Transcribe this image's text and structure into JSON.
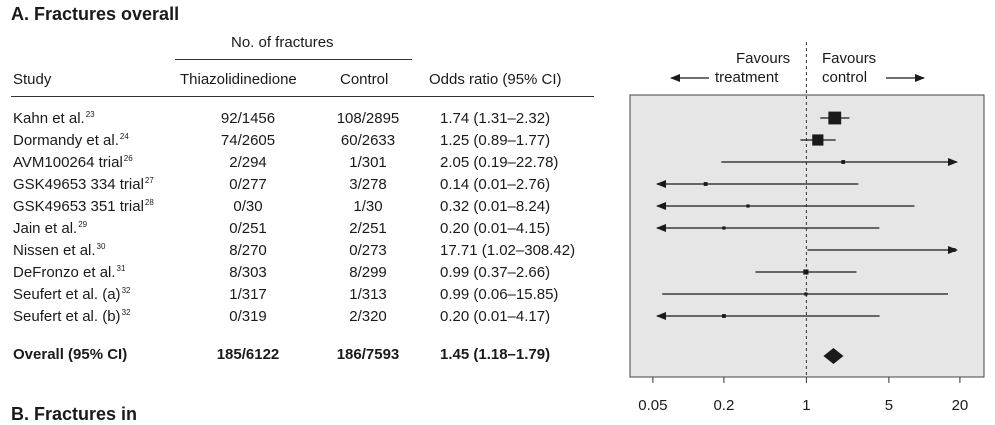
{
  "section_title": "A. Fractures overall",
  "next_section_title": "B. Fractures in",
  "columns": {
    "group_header": "No. of fractures",
    "study": "Study",
    "treatment": "Thiazolidinedione",
    "control": "Control",
    "or": "Odds ratio (95% CI)"
  },
  "favours": {
    "left_line1": "Favours",
    "left_line2": "treatment",
    "right_line1": "Favours",
    "right_line2": "control"
  },
  "rows": [
    {
      "study": "Kahn et al.",
      "ref": "23",
      "treatment": "92/1456",
      "control": "108/2895",
      "or_text": "1.74 (1.31–2.32)"
    },
    {
      "study": "Dormandy et al.",
      "ref": "24",
      "treatment": "74/2605",
      "control": "60/2633",
      "or_text": "1.25 (0.89–1.77)"
    },
    {
      "study": "AVM100264 trial",
      "ref": "26",
      "treatment": "2/294",
      "control": "1/301",
      "or_text": "2.05 (0.19–22.78)"
    },
    {
      "study": "GSK49653 334 trial",
      "ref": "27",
      "treatment": "0/277",
      "control": "3/278",
      "or_text": "0.14 (0.01–2.76)"
    },
    {
      "study": "GSK49653 351 trial",
      "ref": "28",
      "treatment": "0/30",
      "control": "1/30",
      "or_text": "0.32 (0.01–8.24)"
    },
    {
      "study": "Jain et al.",
      "ref": "29",
      "treatment": "0/251",
      "control": "2/251",
      "or_text": "0.20 (0.01–4.15)"
    },
    {
      "study": "Nissen et al.",
      "ref": "30",
      "treatment": "8/270",
      "control": "0/273",
      "or_text": "17.71 (1.02–308.42)"
    },
    {
      "study": "DeFronzo et al.",
      "ref": "31",
      "treatment": "8/303",
      "control": "8/299",
      "or_text": "0.99 (0.37–2.66)"
    },
    {
      "study": "Seufert et al. (a)",
      "ref": "32",
      "treatment": "1/317",
      "control": "1/313",
      "or_text": "0.99 (0.06–15.85)"
    },
    {
      "study": "Seufert et al. (b)",
      "ref": "32",
      "treatment": "0/319",
      "control": "2/320",
      "or_text": "0.20 (0.01–4.17)"
    }
  ],
  "overall": {
    "study": "Overall (95% CI)",
    "treatment": "185/6122",
    "control": "186/7593",
    "or_text": "1.45 (1.18–1.79)"
  },
  "chart_data": {
    "type": "forest",
    "x_scale": "log",
    "xlim": [
      0.032,
      32
    ],
    "null_line": 1,
    "x_ticks": [
      0.05,
      0.2,
      1,
      5,
      20
    ],
    "x_tick_labels": [
      "0.05",
      "0.2",
      "1",
      "5",
      "20"
    ],
    "studies": [
      {
        "estimate": 1.74,
        "lower": 1.31,
        "upper": 2.32,
        "weight": 4
      },
      {
        "estimate": 1.25,
        "lower": 0.89,
        "upper": 1.77,
        "weight": 3.5
      },
      {
        "estimate": 2.05,
        "lower": 0.19,
        "upper": 22.78,
        "weight": 1.2,
        "arrow_right": true
      },
      {
        "estimate": 0.14,
        "lower": 0.01,
        "upper": 2.76,
        "weight": 1.2,
        "arrow_left": true
      },
      {
        "estimate": 0.32,
        "lower": 0.01,
        "upper": 8.24,
        "weight": 1,
        "arrow_left": true
      },
      {
        "estimate": 0.2,
        "lower": 0.01,
        "upper": 4.15,
        "weight": 1,
        "arrow_left": true
      },
      {
        "estimate": 17.71,
        "lower": 1.02,
        "upper": 308.42,
        "weight": 1.2,
        "arrow_right": true
      },
      {
        "estimate": 0.99,
        "lower": 0.37,
        "upper": 2.66,
        "weight": 1.6
      },
      {
        "estimate": 0.99,
        "lower": 0.06,
        "upper": 15.85,
        "weight": 1
      },
      {
        "estimate": 0.2,
        "lower": 0.01,
        "upper": 4.17,
        "weight": 1.2,
        "arrow_left": true
      }
    ],
    "overall": {
      "estimate": 1.45,
      "lower": 1.18,
      "upper": 1.79
    },
    "colors": {
      "panel_bg": "#e6e6e6",
      "ink": "#1a1a1a",
      "ci_line": "#555555"
    }
  }
}
